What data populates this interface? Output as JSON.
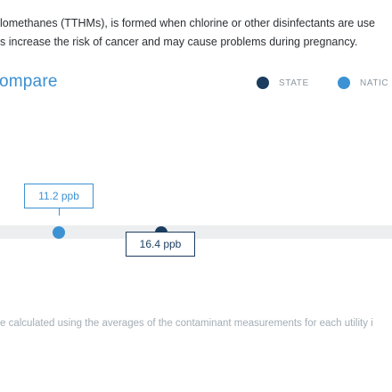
{
  "intro": {
    "line1": "lomethanes (TTHMs), is formed when chlorine or other disinfectants are use",
    "line2": "s increase the risk of cancer and may cause problems during pregnancy."
  },
  "compare": {
    "title": "ompare"
  },
  "legend": {
    "state_label": "STATE",
    "national_label": "NATIC",
    "state_color": "#1c3c5f",
    "national_color": "#3c92d2"
  },
  "comparison": {
    "national": {
      "value": 11.2,
      "label": "11.2 ppb"
    },
    "state": {
      "value": 16.4,
      "label": "16.4 ppb"
    }
  },
  "footnote": "e calculated using the averages of the contaminant measurements for each utility i"
}
